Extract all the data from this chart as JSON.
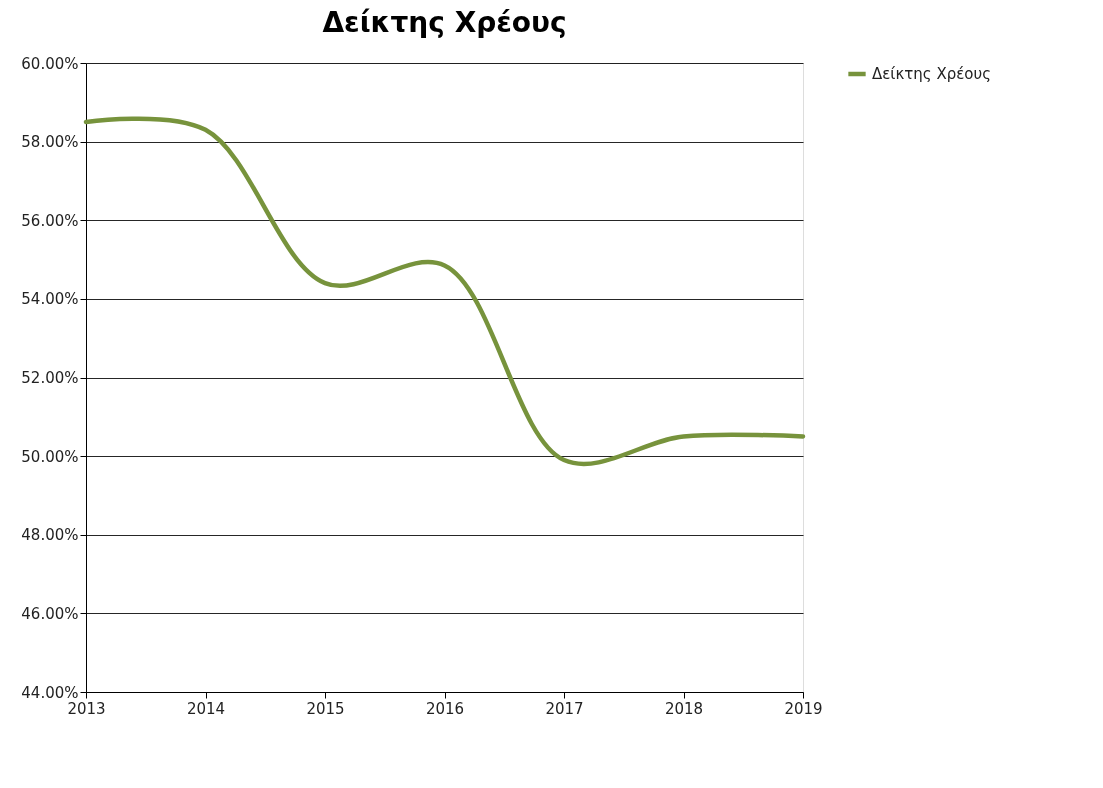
{
  "chart_data": {
    "type": "line",
    "title": "Δείκτης Χρέους",
    "x": [
      2013,
      2014,
      2015,
      2016,
      2017,
      2018,
      2019
    ],
    "series": [
      {
        "name": "Δείκτης Χρέους",
        "color": "#77933c",
        "values": [
          58.5,
          58.3,
          54.4,
          54.85,
          49.9,
          50.5,
          50.5
        ]
      }
    ],
    "xlim": [
      2013,
      2019
    ],
    "xticks": [
      2013,
      2014,
      2015,
      2016,
      2017,
      2018,
      2019
    ],
    "ylim": [
      44,
      60
    ],
    "yticks": [
      {
        "value": 44,
        "label": "44.00%"
      },
      {
        "value": 46,
        "label": "46.00%"
      },
      {
        "value": 48,
        "label": "48.00%"
      },
      {
        "value": 50,
        "label": "50.00%"
      },
      {
        "value": 52,
        "label": "52.00%"
      },
      {
        "value": 54,
        "label": "54.00%"
      },
      {
        "value": 56,
        "label": "56.00%"
      },
      {
        "value": 58,
        "label": "58.00%"
      },
      {
        "value": 60,
        "label": "60.00%"
      }
    ],
    "grid": "y",
    "legend": "right",
    "marker": "none",
    "line_style": "solid"
  }
}
